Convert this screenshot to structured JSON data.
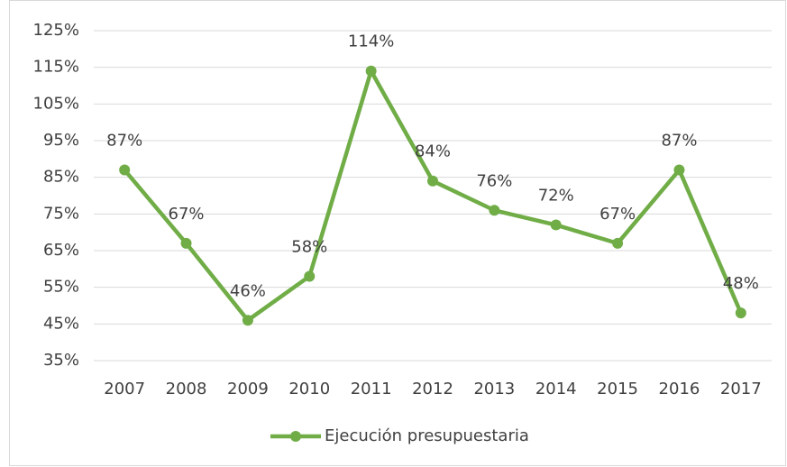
{
  "chart_data": {
    "type": "line",
    "categories": [
      "2007",
      "2008",
      "2009",
      "2010",
      "2011",
      "2012",
      "2013",
      "2014",
      "2015",
      "2016",
      "2017"
    ],
    "series": [
      {
        "name": "Ejecución presupuestaria",
        "color": "#70ad47",
        "values": [
          87,
          67,
          46,
          58,
          114,
          84,
          76,
          72,
          67,
          87,
          48
        ],
        "value_labels": [
          "87%",
          "67%",
          "46%",
          "58%",
          "114%",
          "84%",
          "76%",
          "72%",
          "67%",
          "87%",
          "48%"
        ]
      }
    ],
    "ylim": [
      35,
      125
    ],
    "yticks": [
      {
        "value": 35,
        "label": "35%"
      },
      {
        "value": 45,
        "label": "45%"
      },
      {
        "value": 55,
        "label": "55%"
      },
      {
        "value": 65,
        "label": "65%"
      },
      {
        "value": 75,
        "label": "75%"
      },
      {
        "value": 85,
        "label": "85%"
      },
      {
        "value": 95,
        "label": "95%"
      },
      {
        "value": 105,
        "label": "105%"
      },
      {
        "value": 115,
        "label": "115%"
      },
      {
        "value": 125,
        "label": "125%"
      }
    ],
    "grid": true,
    "legend": "bottom"
  }
}
